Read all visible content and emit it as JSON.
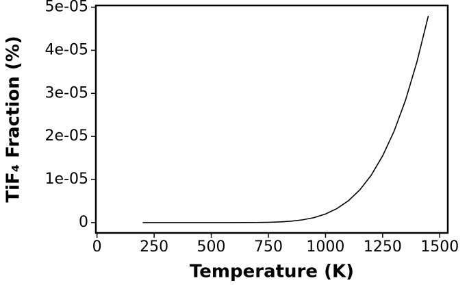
{
  "chart_data": {
    "type": "line",
    "xlabel": "Temperature (K)",
    "ylabel": "TiF₄ Fraction (%)",
    "x": [
      200,
      250,
      300,
      350,
      400,
      450,
      500,
      550,
      600,
      650,
      700,
      750,
      800,
      850,
      900,
      950,
      1000,
      1050,
      1100,
      1150,
      1200,
      1250,
      1300,
      1350,
      1400,
      1450
    ],
    "series": [
      {
        "name": "TiF4",
        "color": "#000000",
        "values": [
          3e-24,
          9e-20,
          8e-17,
          1e-14,
          4e-13,
          7e-12,
          7e-11,
          4.6e-10,
          2.1e-09,
          8e-09,
          2.5e-08,
          6.5e-08,
          1.5e-07,
          3.3e-07,
          6.4e-07,
          1.16e-06,
          1.99e-06,
          3.25e-06,
          5.06e-06,
          7.59e-06,
          1.1e-05,
          1.55e-05,
          2.12e-05,
          2.84e-05,
          3.73e-05,
          4.8e-05
        ]
      }
    ],
    "xlim": [
      -5,
      1535
    ],
    "xticks": [
      0,
      250,
      500,
      750,
      1000,
      1250,
      1500
    ],
    "ylim": [
      -2.4e-06,
      5.04e-05
    ],
    "yticks": [
      0,
      {
        "value": 1e-05,
        "label": "1e-05"
      },
      {
        "value": 2e-05,
        "label": "2e-05"
      },
      {
        "value": 3e-05,
        "label": "3e-05"
      },
      {
        "value": 4e-05,
        "label": "4e-05"
      },
      {
        "value": 5e-05,
        "label": "5e-05"
      }
    ],
    "grid": false
  }
}
